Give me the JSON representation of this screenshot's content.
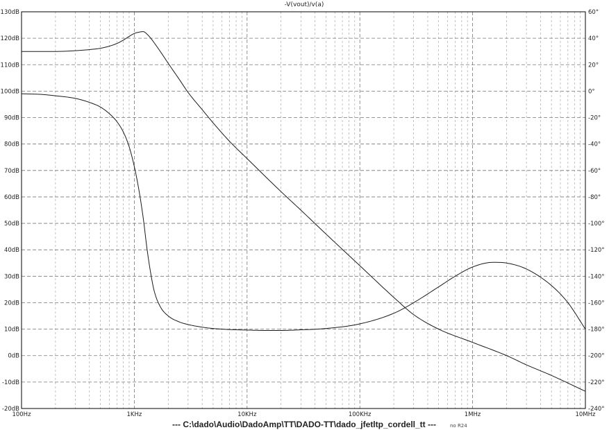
{
  "chart_data": {
    "type": "line",
    "title": "-V(vout)/v(a)",
    "x_scale": "log",
    "xlim": [
      100,
      10000000
    ],
    "x_ticks": [
      {
        "value": 100,
        "label": "100Hz"
      },
      {
        "value": 1000,
        "label": "1KHz"
      },
      {
        "value": 10000,
        "label": "10KHz"
      },
      {
        "value": 100000,
        "label": "100KHz"
      },
      {
        "value": 1000000,
        "label": "1MHz"
      },
      {
        "value": 10000000,
        "label": "10MHz"
      }
    ],
    "y_left": {
      "ylim": [
        -20,
        130
      ],
      "ticks": [
        {
          "value": 130,
          "label": "130dB"
        },
        {
          "value": 120,
          "label": "120dB"
        },
        {
          "value": 110,
          "label": "110dB"
        },
        {
          "value": 100,
          "label": "100dB"
        },
        {
          "value": 90,
          "label": "90dB"
        },
        {
          "value": 80,
          "label": "80dB"
        },
        {
          "value": 70,
          "label": "70dB"
        },
        {
          "value": 60,
          "label": "60dB"
        },
        {
          "value": 50,
          "label": "50dB"
        },
        {
          "value": 40,
          "label": "40dB"
        },
        {
          "value": 30,
          "label": "30dB"
        },
        {
          "value": 20,
          "label": "20dB"
        },
        {
          "value": 10,
          "label": "10dB"
        },
        {
          "value": 0,
          "label": "0dB"
        },
        {
          "value": -10,
          "label": "-10dB"
        },
        {
          "value": -20,
          "label": "-20dB"
        }
      ]
    },
    "y_right": {
      "ylim": [
        -240,
        60
      ],
      "ticks": [
        {
          "value": 60,
          "label": "60°"
        },
        {
          "value": 40,
          "label": "40°"
        },
        {
          "value": 20,
          "label": "20°"
        },
        {
          "value": 0,
          "label": "0°"
        },
        {
          "value": -20,
          "label": "-20°"
        },
        {
          "value": -40,
          "label": "-40°"
        },
        {
          "value": -60,
          "label": "-60°"
        },
        {
          "value": -80,
          "label": "-80°"
        },
        {
          "value": -100,
          "label": "-100°"
        },
        {
          "value": -120,
          "label": "-120°"
        },
        {
          "value": -140,
          "label": "-140°"
        },
        {
          "value": -160,
          "label": "-160°"
        },
        {
          "value": -180,
          "label": "-180°"
        },
        {
          "value": -200,
          "label": "-200°"
        },
        {
          "value": -220,
          "label": "-220°"
        },
        {
          "value": -240,
          "label": "-240°"
        }
      ]
    },
    "grid": true,
    "series": [
      {
        "axis": "left",
        "x": [
          100,
          150,
          200,
          300,
          400,
          500,
          600,
          700,
          800,
          900,
          1000,
          1100,
          1200,
          1300,
          1400,
          1500,
          1700,
          2000,
          2500,
          3000,
          4000,
          5000,
          7000,
          10000,
          20000,
          30000,
          50000,
          100000,
          200000,
          300000,
          500000,
          1000000,
          2000000,
          3000000,
          5000000,
          10000000
        ],
        "values": [
          115,
          115,
          115,
          115.3,
          115.7,
          116.2,
          117,
          118,
          119.3,
          120.7,
          121.8,
          122.3,
          122.5,
          121.5,
          120,
          118.3,
          115,
          110.5,
          104.5,
          99.5,
          93,
          88,
          81,
          74.5,
          62,
          55,
          46,
          34,
          22,
          15.5,
          10,
          5,
          0,
          -3.5,
          -7.5,
          -13.5
        ]
      },
      {
        "axis": "right",
        "x": [
          100,
          150,
          200,
          300,
          400,
          500,
          600,
          700,
          800,
          900,
          1000,
          1100,
          1200,
          1300,
          1400,
          1500,
          1700,
          2000,
          2500,
          3000,
          4000,
          5000,
          7000,
          10000,
          15000,
          20000,
          30000,
          50000,
          100000,
          200000,
          300000,
          500000,
          700000,
          1000000,
          1500000,
          2000000,
          3000000,
          5000000,
          7000000,
          10000000
        ],
        "values": [
          -2,
          -2.5,
          -3.5,
          -5.5,
          -8.5,
          -12,
          -17,
          -23,
          -31,
          -42,
          -57,
          -75,
          -96,
          -120,
          -138,
          -151,
          -163,
          -170,
          -174.5,
          -176.5,
          -178.5,
          -179.5,
          -180.3,
          -180.7,
          -181,
          -181,
          -180.5,
          -179.5,
          -176,
          -168,
          -160,
          -148,
          -140,
          -133,
          -129.5,
          -130,
          -134.5,
          -147,
          -160,
          -180
        ]
      }
    ]
  },
  "footer": {
    "path": "---   C:\\dado\\Audio\\DadoAmp\\TT\\DADO-TT\\dado_jfetltp_cordell_tt   ---",
    "note": "no R24"
  }
}
